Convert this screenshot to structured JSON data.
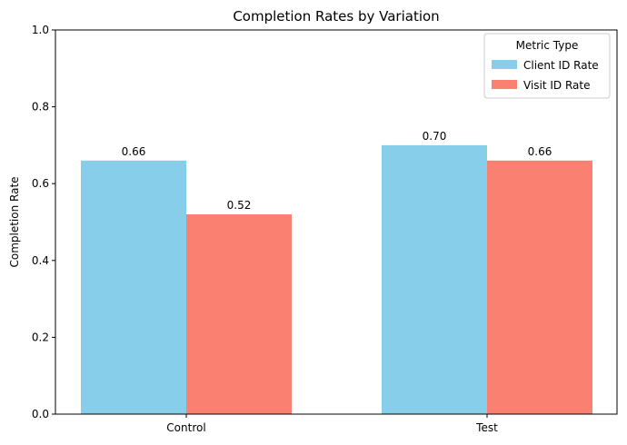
{
  "chart_data": {
    "type": "bar",
    "title": "Completion Rates by Variation",
    "xlabel": "",
    "ylabel": "Completion Rate",
    "categories": [
      "Control",
      "Test"
    ],
    "series": [
      {
        "name": "Client ID Rate",
        "values": [
          0.66,
          0.7
        ],
        "labels": [
          "0.66",
          "0.70"
        ],
        "color": "#87ceeb"
      },
      {
        "name": "Visit ID Rate",
        "values": [
          0.52,
          0.66
        ],
        "labels": [
          "0.52",
          "0.66"
        ],
        "color": "#fa8072"
      }
    ],
    "ylim": [
      0,
      1.0
    ],
    "yticks": [
      "0.0",
      "0.2",
      "0.4",
      "0.6",
      "0.8",
      "1.0"
    ],
    "legend": {
      "title": "Metric Type",
      "placement": "top-right"
    },
    "grid": false
  }
}
